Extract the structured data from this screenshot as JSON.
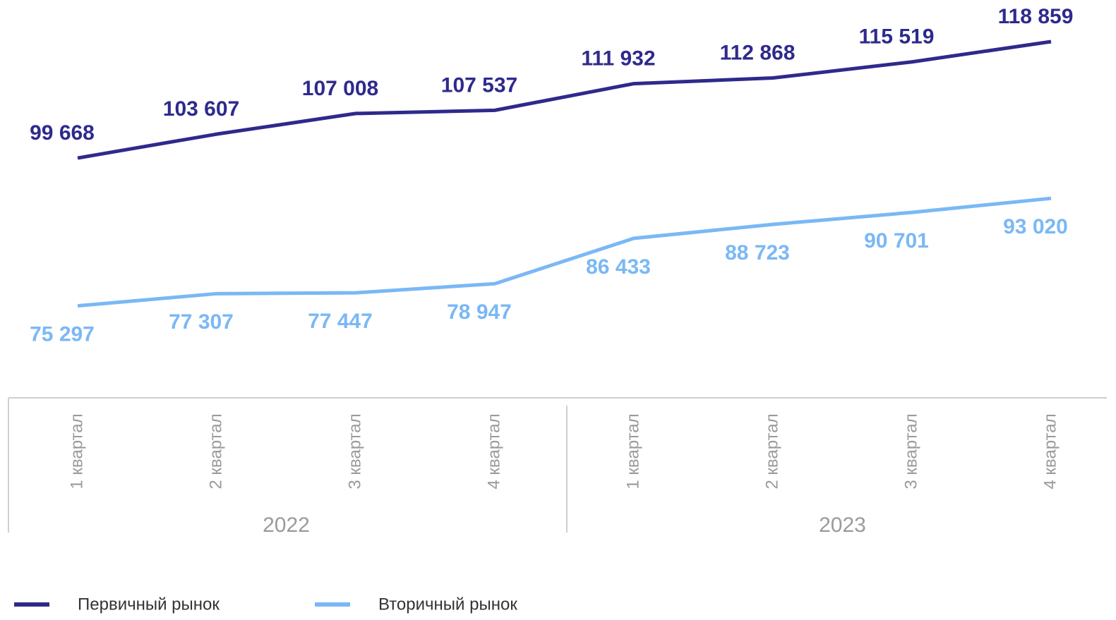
{
  "chart_data": {
    "type": "line",
    "categories": [
      "1 квартал",
      "2 квартал",
      "3 квартал",
      "4 квартал",
      "1 квартал",
      "2 квартал",
      "3 квартал",
      "4 квартал"
    ],
    "category_groups": [
      "2022",
      "2023"
    ],
    "series": [
      {
        "name": "Первичный рынок",
        "color": "#2e2a8c",
        "values": [
          99668,
          103607,
          107008,
          107537,
          111932,
          112868,
          115519,
          118859
        ],
        "value_labels": [
          "99 668",
          "103 607",
          "107 008",
          "107 537",
          "111 932",
          "112 868",
          "115 519",
          "118 859"
        ]
      },
      {
        "name": "Вторичный рынок",
        "color": "#7ab8f5",
        "values": [
          75297,
          77307,
          77447,
          78947,
          86433,
          88723,
          90701,
          93020
        ],
        "value_labels": [
          "75 297",
          "77 307",
          "77 447",
          "78 947",
          "86 433",
          "88 723",
          "90 701",
          "93 020"
        ]
      }
    ]
  }
}
